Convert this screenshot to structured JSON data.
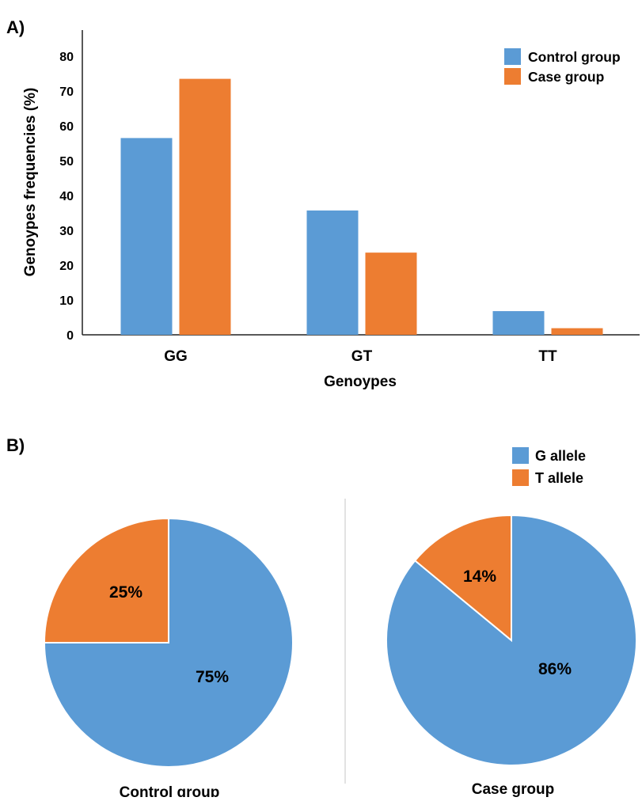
{
  "panels": {
    "a_label": "A)",
    "b_label": "B)"
  },
  "colors": {
    "control": "#5b9bd5",
    "case": "#ed7d31",
    "g_allele": "#5b9bd5",
    "t_allele": "#ed7d31"
  },
  "chart_data": [
    {
      "type": "bar",
      "ylabel": "Genoypes frequencies (%)",
      "xlabel": "Genoypes",
      "categories": [
        "GG",
        "GT",
        "TT"
      ],
      "ylim": [
        0,
        85
      ],
      "yticks": [
        0,
        10,
        20,
        30,
        40,
        50,
        60,
        70,
        80
      ],
      "grid": false,
      "legend": "top-right",
      "series": [
        {
          "name": "Control group",
          "values": [
            56.5,
            35.7,
            6.8
          ]
        },
        {
          "name": "Case group",
          "values": [
            73.5,
            23.6,
            1.9
          ]
        }
      ]
    },
    {
      "type": "pie",
      "title": "Control group",
      "legend": "top-right",
      "slices": [
        {
          "name": "G allele",
          "value": 75,
          "label": "75%"
        },
        {
          "name": "T allele",
          "value": 25,
          "label": "25%"
        }
      ]
    },
    {
      "type": "pie",
      "title": "Case group",
      "legend": "top-right",
      "slices": [
        {
          "name": "G allele",
          "value": 86,
          "label": "86%"
        },
        {
          "name": "T allele",
          "value": 14,
          "label": "14%"
        }
      ]
    }
  ]
}
